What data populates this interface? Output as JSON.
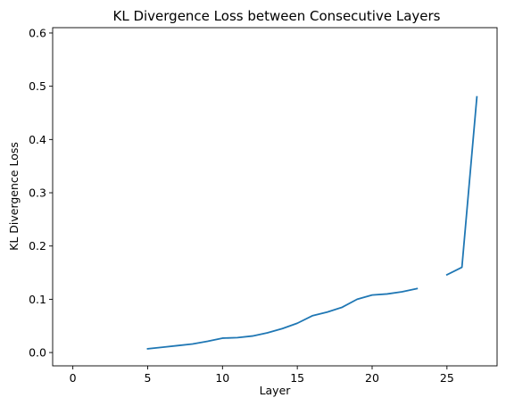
{
  "chart_data": {
    "type": "line",
    "title": "KL Divergence Loss between Consecutive Layers",
    "xlabel": "Layer",
    "ylabel": "KL Divergence Loss",
    "xlim": [
      -1.35,
      28.35
    ],
    "ylim": [
      -0.025,
      0.61
    ],
    "xticks": [
      0,
      5,
      10,
      15,
      20,
      25
    ],
    "yticks": [
      0.0,
      0.1,
      0.2,
      0.3,
      0.4,
      0.5,
      0.6
    ],
    "ytick_labels": [
      "0.0",
      "0.1",
      "0.2",
      "0.3",
      "0.4",
      "0.5",
      "0.6"
    ],
    "grid": false,
    "series": [
      {
        "color": "#1f77b4",
        "points": [
          [
            5,
            0.007
          ],
          [
            6,
            0.01
          ],
          [
            7,
            0.013
          ],
          [
            8,
            0.016
          ],
          [
            9,
            0.021
          ],
          [
            10,
            0.027
          ],
          [
            11,
            0.028
          ],
          [
            12,
            0.031
          ],
          [
            13,
            0.037
          ],
          [
            14,
            0.045
          ],
          [
            15,
            0.055
          ],
          [
            16,
            0.069
          ],
          [
            17,
            0.076
          ],
          [
            18,
            0.085
          ],
          [
            19,
            0.1
          ],
          [
            20,
            0.108
          ],
          [
            21,
            0.11
          ],
          [
            22,
            0.114
          ],
          [
            23,
            0.12
          ],
          [
            24,
            null
          ],
          [
            25,
            0.146
          ],
          [
            26,
            0.16
          ],
          [
            27,
            0.48
          ]
        ]
      }
    ]
  }
}
